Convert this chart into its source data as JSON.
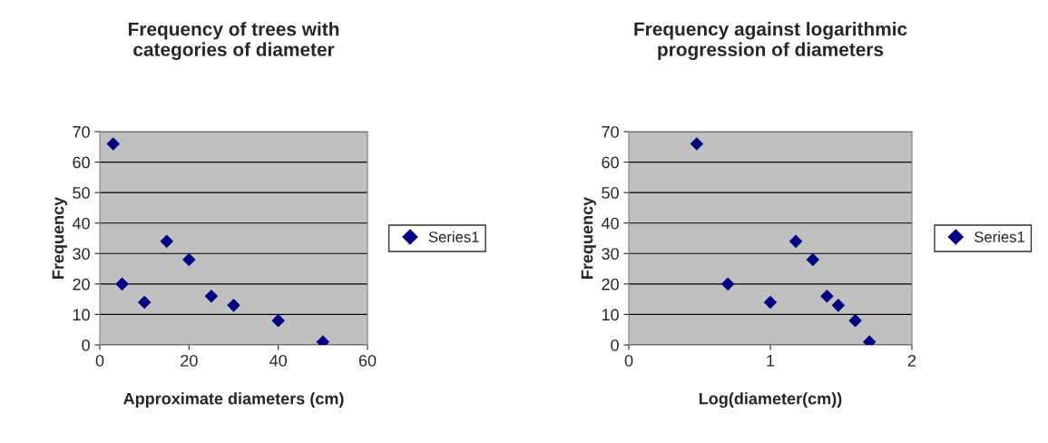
{
  "chart_data": [
    {
      "type": "scatter",
      "title": "Frequency of trees with\ncategories of diameter",
      "xlabel": "Approximate diameters (cm)",
      "ylabel": "Frequency",
      "x": [
        3,
        5,
        10,
        15,
        20,
        25,
        30,
        40,
        50
      ],
      "series": [
        {
          "name": "Series1",
          "color": "#000080",
          "values": [
            66,
            20,
            14,
            34,
            28,
            16,
            13,
            8,
            1
          ]
        }
      ],
      "xlim": [
        0,
        60
      ],
      "xticks": [
        0,
        20,
        40,
        60
      ],
      "ylim": [
        0,
        70
      ],
      "yticks": [
        0,
        10,
        20,
        30,
        40,
        50,
        60,
        70
      ],
      "grid": "y",
      "legend": "right",
      "marker": "diamond"
    },
    {
      "type": "scatter",
      "title": "Frequency against logarithmic\nprogression of diameters",
      "xlabel": "Log(diameter(cm))",
      "ylabel": "Frequency",
      "x": [
        0.48,
        0.7,
        1.0,
        1.18,
        1.3,
        1.4,
        1.48,
        1.6,
        1.7
      ],
      "series": [
        {
          "name": "Series1",
          "color": "#000080",
          "values": [
            66,
            20,
            14,
            34,
            28,
            16,
            13,
            8,
            1
          ]
        }
      ],
      "xlim": [
        0,
        2
      ],
      "xticks": [
        0,
        1,
        2
      ],
      "ylim": [
        0,
        70
      ],
      "yticks": [
        0,
        10,
        20,
        30,
        40,
        50,
        60,
        70
      ],
      "grid": "y",
      "legend": "right",
      "marker": "diamond"
    }
  ]
}
